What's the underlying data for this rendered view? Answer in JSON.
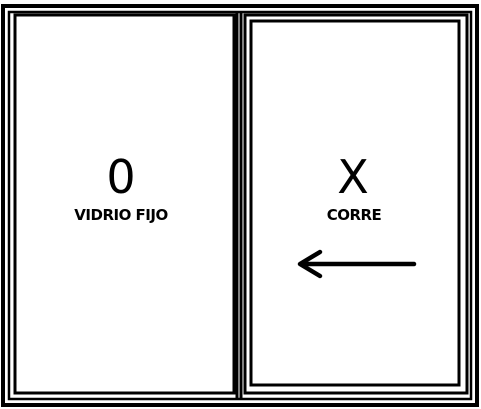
{
  "diagram": {
    "panels": [
      {
        "symbol": "0",
        "label": "VIDRIO FIJO"
      },
      {
        "symbol": "X",
        "label": "CORRE"
      }
    ],
    "arrow_icon": "arrow-left-icon"
  },
  "colors": {
    "line": "#000000",
    "background": "#ffffff"
  }
}
